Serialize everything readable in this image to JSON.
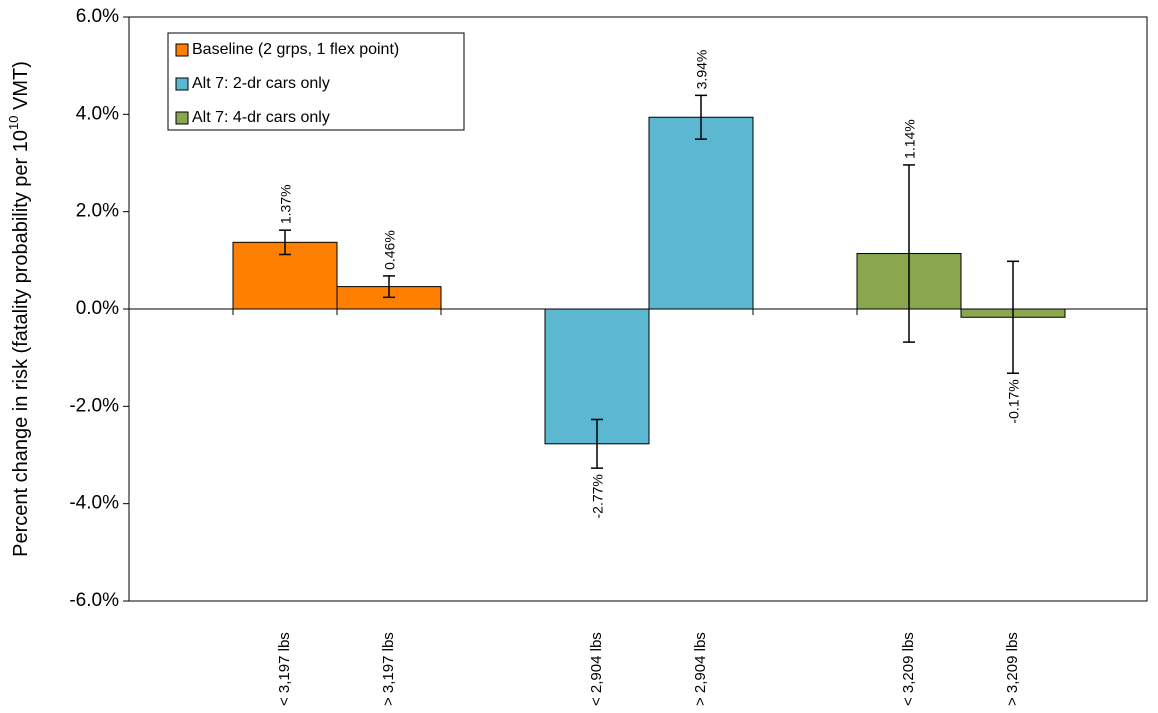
{
  "chart_data": {
    "type": "bar",
    "y_label": [
      "Percent change in risk (fatality probability per 10",
      "10",
      " VMT)"
    ],
    "categories": [
      null,
      "< 3,197 lbs",
      "> 3,197 lbs",
      null,
      "< 2,904 lbs",
      "> 2,904 lbs",
      null,
      "< 3,209 lbs",
      "> 3,209 lbs"
    ],
    "series": [
      {
        "name": "Baseline (2 grps, 1 flex point)",
        "color": "#ff8000",
        "values": [
          null,
          1.37,
          0.46,
          null,
          null,
          null,
          null,
          null,
          null
        ],
        "value_labels": [
          null,
          "1.37%",
          "0.46%",
          null,
          null,
          null,
          null,
          null,
          null
        ],
        "errors": [
          null,
          0.25,
          0.22,
          null,
          null,
          null,
          null,
          null,
          null
        ]
      },
      {
        "name": "Alt 7: 2-dr cars only",
        "color": "#5bb8d0",
        "values": [
          null,
          null,
          null,
          null,
          -2.77,
          3.94,
          null,
          null,
          null
        ],
        "value_labels": [
          null,
          null,
          null,
          null,
          "-2.77%",
          "3.94%",
          null,
          null,
          null
        ],
        "errors": [
          null,
          null,
          null,
          null,
          0.5,
          0.45,
          null,
          null,
          null
        ]
      },
      {
        "name": "Alt 7: 4-dr cars only",
        "color": "#8aa64f",
        "values": [
          null,
          null,
          null,
          null,
          null,
          null,
          null,
          1.14,
          -0.17
        ],
        "value_labels": [
          null,
          null,
          null,
          null,
          null,
          null,
          null,
          "1.14%",
          "-0.17%"
        ],
        "errors": [
          null,
          null,
          null,
          null,
          null,
          null,
          null,
          1.82,
          1.15
        ]
      }
    ],
    "ylim": [
      -6,
      6
    ],
    "yticks": [
      {
        "value": -6,
        "label": "-6.0%"
      },
      {
        "value": -4,
        "label": "-4.0%"
      },
      {
        "value": -2,
        "label": "-2.0%"
      },
      {
        "value": 0,
        "label": "0.0%"
      },
      {
        "value": 2,
        "label": "2.0%"
      },
      {
        "value": 4,
        "label": "4.0%"
      },
      {
        "value": 6,
        "label": "6.0%"
      }
    ],
    "legend": "upper left",
    "grid": false
  }
}
